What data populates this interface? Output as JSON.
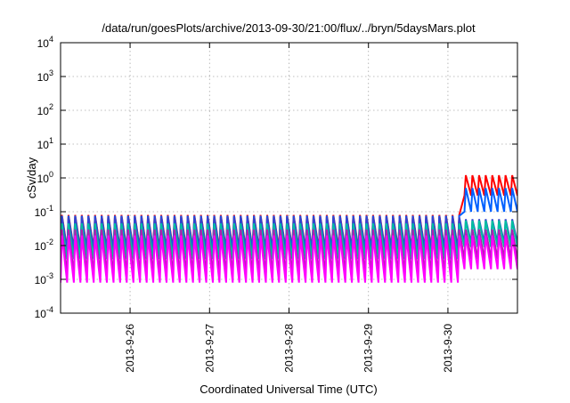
{
  "chart_data": {
    "type": "line",
    "title": "/data/run/goesPlots/archive/2013-09-30/21:00/flux/../bryn/5daysMars.plot",
    "xlabel": "Coordinated Universal Time (UTC)",
    "ylabel": "cSv/day",
    "yscale": "log",
    "ylim_exponents": [
      -4,
      4
    ],
    "yticks": [
      {
        "mantissa": "10",
        "exp": "-4"
      },
      {
        "mantissa": "10",
        "exp": "-3"
      },
      {
        "mantissa": "10",
        "exp": "-2"
      },
      {
        "mantissa": "10",
        "exp": "-1"
      },
      {
        "mantissa": "10",
        "exp": "0"
      },
      {
        "mantissa": "10",
        "exp": "1"
      },
      {
        "mantissa": "10",
        "exp": "2"
      },
      {
        "mantissa": "10",
        "exp": "3"
      },
      {
        "mantissa": "10",
        "exp": "4"
      }
    ],
    "xrange": [
      "2013-09-25 03:00",
      "2013-09-30 21:00"
    ],
    "xticks": [
      "2013-9-26",
      "2013-9-27",
      "2013-9-28",
      "2013-9-29",
      "2013-9-30"
    ],
    "grid": true,
    "legend": "none",
    "sawtooth": {
      "period_hours": 2.0,
      "rise_hours": 0.4,
      "step_time": "2013-09-30 04:00"
    },
    "series": [
      {
        "color": "#ff0000",
        "peak": 0.08,
        "trough": 0.008,
        "peak_after": 1.2,
        "trough_after": 0.3
      },
      {
        "color": "#0060ff",
        "peak": 0.075,
        "trough": 0.007,
        "peak_after": 0.5,
        "trough_after": 0.1
      },
      {
        "color": "#3344cc",
        "peak": 0.07,
        "trough": 0.005,
        "peak_after": 0.06,
        "trough_after": 0.012
      },
      {
        "color": "#00c0a0",
        "peak": 0.045,
        "trough": 0.004,
        "peak_after": 0.055,
        "trough_after": 0.009
      },
      {
        "color": "#b020b0",
        "peak": 0.03,
        "trough": 0.0015,
        "peak_after": 0.03,
        "trough_after": 0.004
      },
      {
        "color": "#ff00ff",
        "peak": 0.02,
        "trough": 0.0008,
        "peak_after": 0.02,
        "trough_after": 0.002
      }
    ]
  }
}
